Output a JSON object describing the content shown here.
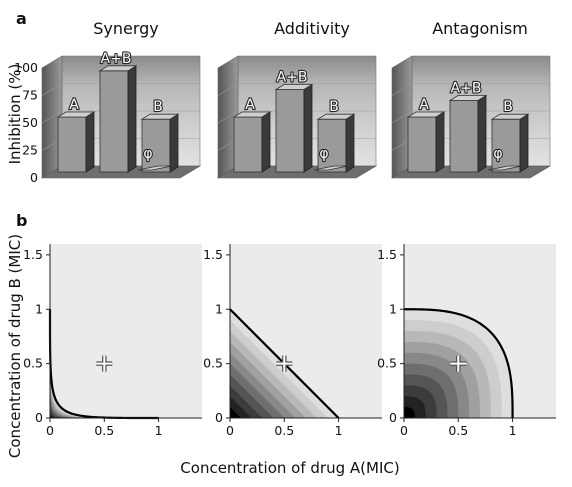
{
  "panel_a_label": "a",
  "panel_b_label": "b",
  "chart_data": [
    {
      "type": "bar",
      "title": "Synergy",
      "ylabel": "Inhibition (%)",
      "ylim": [
        0,
        100
      ],
      "yticks": [
        "0",
        "25",
        "50",
        "75",
        "100"
      ],
      "categories": [
        "A",
        "A+B",
        "B",
        "φ"
      ],
      "values": [
        50,
        92,
        48,
        0
      ]
    },
    {
      "type": "bar",
      "title": "Additivity",
      "ylim": [
        0,
        100
      ],
      "categories": [
        "A",
        "A+B",
        "B",
        "φ"
      ],
      "values": [
        50,
        75,
        48,
        0
      ]
    },
    {
      "type": "bar",
      "title": "Antagonism",
      "ylim": [
        0,
        100
      ],
      "categories": [
        "A",
        "A+B",
        "B",
        "φ"
      ],
      "values": [
        50,
        65,
        48,
        0
      ]
    },
    {
      "type": "heatmap",
      "xlabel": "Concentration of drug A(MIC)",
      "ylabel": "Concentration of drug B (MIC)",
      "xlim": [
        0,
        1.4
      ],
      "ylim": [
        0,
        1.6
      ],
      "xticks": [
        "0",
        "0.5",
        "1"
      ],
      "yticks": [
        "0",
        "0.5",
        "1",
        "1.5"
      ],
      "isobole_exponent": 0.3,
      "point": [
        0.5,
        0.5
      ]
    },
    {
      "type": "heatmap",
      "xlim": [
        0,
        1.4
      ],
      "ylim": [
        0,
        1.6
      ],
      "xticks": [
        "0",
        "0.5",
        "1"
      ],
      "yticks": [
        "0",
        "0.5",
        "1",
        "1.5"
      ],
      "isobole_exponent": 1,
      "point": [
        0.5,
        0.5
      ]
    },
    {
      "type": "heatmap",
      "xlim": [
        0,
        1.4
      ],
      "ylim": [
        0,
        1.6
      ],
      "xticks": [
        "0",
        "0.5",
        "1"
      ],
      "yticks": [
        "0",
        "0.5",
        "1",
        "1.5"
      ],
      "isobole_exponent": 3,
      "point": [
        0.5,
        0.5
      ]
    }
  ]
}
